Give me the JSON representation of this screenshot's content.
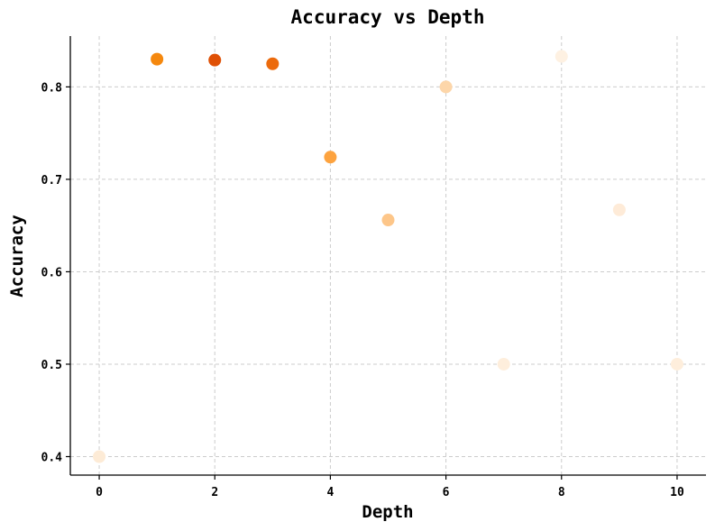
{
  "chart_data": {
    "type": "scatter",
    "title": "Accuracy vs Depth",
    "xlabel": "Depth",
    "ylabel": "Accuracy",
    "xlim": [
      -0.5,
      10.5
    ],
    "ylim": [
      0.38,
      0.855
    ],
    "xticks": [
      0,
      2,
      4,
      6,
      8,
      10
    ],
    "yticks": [
      0.4,
      0.5,
      0.6,
      0.7,
      0.8
    ],
    "ytick_labels": [
      "0.4",
      "0.5",
      "0.6",
      "0.7",
      "0.8"
    ],
    "grid": true,
    "points": [
      {
        "x": 0,
        "y": 0.4,
        "color": "#fdebd6"
      },
      {
        "x": 1,
        "y": 0.83,
        "color": "#f5880e"
      },
      {
        "x": 2,
        "y": 0.829,
        "color": "#df5005"
      },
      {
        "x": 3,
        "y": 0.825,
        "color": "#ec6a0c"
      },
      {
        "x": 4,
        "y": 0.724,
        "color": "#fda33f"
      },
      {
        "x": 5,
        "y": 0.656,
        "color": "#fdc689"
      },
      {
        "x": 6,
        "y": 0.8,
        "color": "#fdd6a9"
      },
      {
        "x": 7,
        "y": 0.5,
        "color": "#feeedc"
      },
      {
        "x": 8,
        "y": 0.833,
        "color": "#fef1e2"
      },
      {
        "x": 9,
        "y": 0.667,
        "color": "#feebd8"
      },
      {
        "x": 10,
        "y": 0.5,
        "color": "#feeedc"
      }
    ]
  }
}
